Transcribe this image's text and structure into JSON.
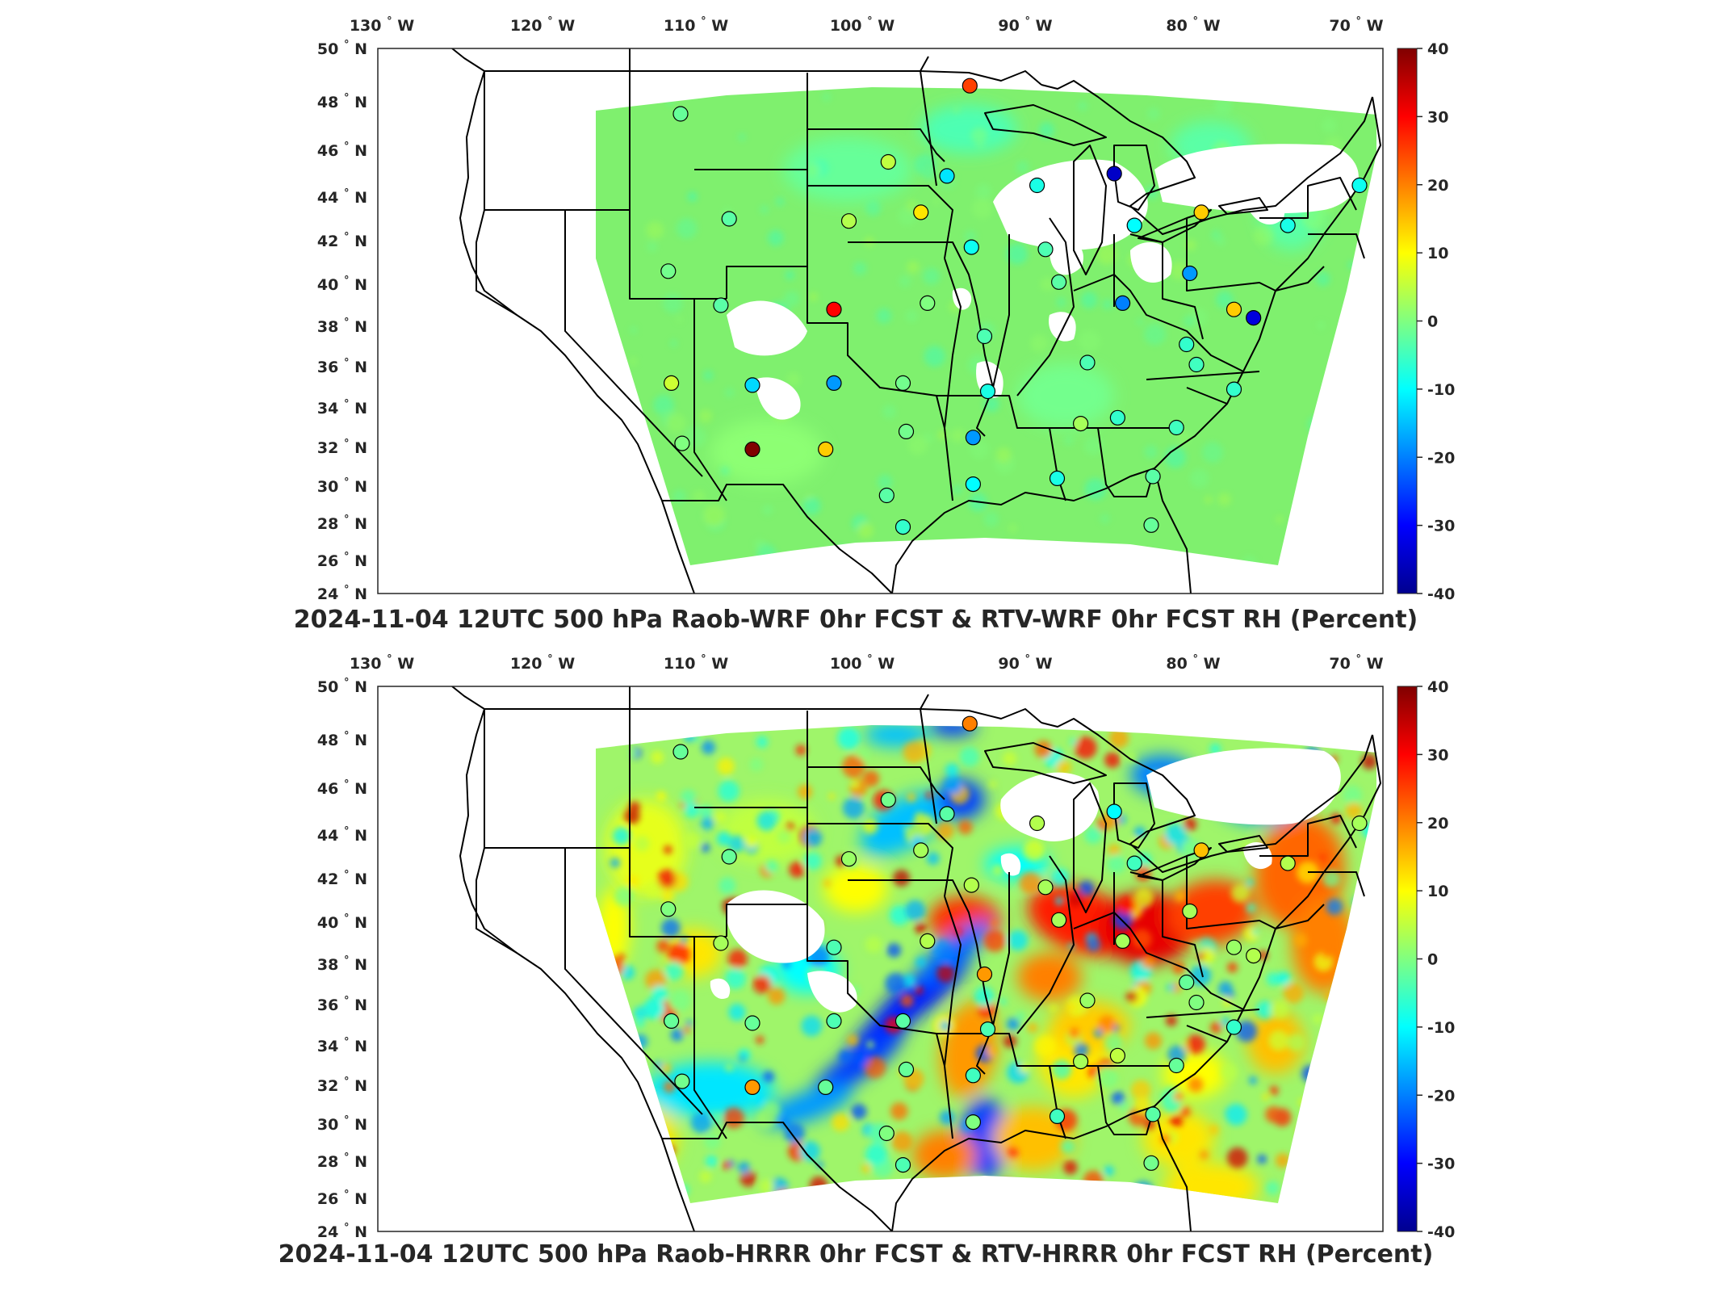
{
  "colors": {
    "jet": [
      "#00008f",
      "#0000ff",
      "#0080ff",
      "#00ffff",
      "#80ff80",
      "#ffff00",
      "#ff8000",
      "#ff0000",
      "#800000"
    ],
    "field_base": "#7ff06e",
    "outline": "#000000"
  },
  "icons": {
    "station_marker": "circle-marker-icon",
    "colorbar": "colorbar-gradient-icon"
  },
  "panels": [
    {
      "title": "2024-11-04 12UTC 500 hPa Raob-WRF 0hr FCST & RTV-WRF 0hr FCST RH (Percent)",
      "lon_ticks": [
        {
          "v": "130",
          "u": "W"
        },
        {
          "v": "120",
          "u": "W"
        },
        {
          "v": "110",
          "u": "W"
        },
        {
          "v": "100",
          "u": "W"
        },
        {
          "v": "90",
          "u": "W"
        },
        {
          "v": "80",
          "u": "W"
        },
        {
          "v": "70",
          "u": "W"
        }
      ],
      "lat_ticks": [
        {
          "v": "50",
          "u": "N"
        },
        {
          "v": "48",
          "u": "N"
        },
        {
          "v": "46",
          "u": "N"
        },
        {
          "v": "44",
          "u": "N"
        },
        {
          "v": "42",
          "u": "N"
        },
        {
          "v": "40",
          "u": "N"
        },
        {
          "v": "38",
          "u": "N"
        },
        {
          "v": "36",
          "u": "N"
        },
        {
          "v": "34",
          "u": "N"
        },
        {
          "v": "32",
          "u": "N"
        },
        {
          "v": "30",
          "u": "N"
        },
        {
          "v": "28",
          "u": "N"
        },
        {
          "v": "26",
          "u": "N"
        },
        {
          "v": "24",
          "u": "N"
        }
      ],
      "colorbar_ticks": [
        "40",
        "30",
        "20",
        "10",
        "0",
        "-10",
        "-20",
        "-30",
        "-40"
      ],
      "field_style": "muted"
    },
    {
      "title": "2024-11-04 12UTC 500 hPa Raob-HRRR 0hr FCST & RTV-HRRR 0hr FCST RH (Percent)",
      "lon_ticks": [
        {
          "v": "130",
          "u": "W"
        },
        {
          "v": "120",
          "u": "W"
        },
        {
          "v": "110",
          "u": "W"
        },
        {
          "v": "100",
          "u": "W"
        },
        {
          "v": "90",
          "u": "W"
        },
        {
          "v": "80",
          "u": "W"
        },
        {
          "v": "70",
          "u": "W"
        }
      ],
      "lat_ticks": [
        {
          "v": "50",
          "u": "N"
        },
        {
          "v": "48",
          "u": "N"
        },
        {
          "v": "46",
          "u": "N"
        },
        {
          "v": "44",
          "u": "N"
        },
        {
          "v": "42",
          "u": "N"
        },
        {
          "v": "40",
          "u": "N"
        },
        {
          "v": "38",
          "u": "N"
        },
        {
          "v": "36",
          "u": "N"
        },
        {
          "v": "34",
          "u": "N"
        },
        {
          "v": "32",
          "u": "N"
        },
        {
          "v": "30",
          "u": "N"
        },
        {
          "v": "28",
          "u": "N"
        },
        {
          "v": "26",
          "u": "N"
        },
        {
          "v": "24",
          "u": "N"
        }
      ],
      "colorbar_ticks": [
        "40",
        "30",
        "20",
        "10",
        "0",
        "-10",
        "-20",
        "-30",
        "-40"
      ],
      "field_style": "vivid"
    }
  ],
  "stations": [
    {
      "lon": -111.0,
      "lat": 47.5,
      "v1": -2,
      "v2": -2
    },
    {
      "lon": -98.4,
      "lat": 45.5,
      "v1": 5,
      "v2": -1
    },
    {
      "lon": -93.4,
      "lat": 48.6,
      "v1": 25,
      "v2": 20
    },
    {
      "lon": -94.8,
      "lat": 44.9,
      "v1": -12,
      "v2": -3
    },
    {
      "lon": -89.3,
      "lat": 44.5,
      "v1": -8,
      "v2": 4
    },
    {
      "lon": -84.7,
      "lat": 45.0,
      "v1": -35,
      "v2": -10
    },
    {
      "lon": -108.0,
      "lat": 43.0,
      "v1": -3,
      "v2": -2
    },
    {
      "lon": -100.8,
      "lat": 42.9,
      "v1": 4,
      "v2": 2
    },
    {
      "lon": -96.4,
      "lat": 43.3,
      "v1": 12,
      "v2": 3
    },
    {
      "lon": -93.3,
      "lat": 41.7,
      "v1": -9,
      "v2": 4
    },
    {
      "lon": -88.8,
      "lat": 41.6,
      "v1": -4,
      "v2": 3
    },
    {
      "lon": -83.5,
      "lat": 42.7,
      "v1": -10,
      "v2": -5
    },
    {
      "lon": -79.5,
      "lat": 43.3,
      "v1": 14,
      "v2": 15
    },
    {
      "lon": -74.2,
      "lat": 42.7,
      "v1": -8,
      "v2": 4
    },
    {
      "lon": -69.8,
      "lat": 44.5,
      "v1": -9,
      "v2": 3
    },
    {
      "lon": -111.8,
      "lat": 40.6,
      "v1": -1,
      "v2": 0
    },
    {
      "lon": -108.5,
      "lat": 39.0,
      "v1": -3,
      "v2": 3
    },
    {
      "lon": -101.7,
      "lat": 38.8,
      "v1": 30,
      "v2": -4
    },
    {
      "lon": -96.0,
      "lat": 39.1,
      "v1": 0,
      "v2": 4
    },
    {
      "lon": -92.5,
      "lat": 37.5,
      "v1": -4,
      "v2": 18
    },
    {
      "lon": -88.0,
      "lat": 40.1,
      "v1": -3,
      "v2": 3
    },
    {
      "lon": -84.2,
      "lat": 39.1,
      "v1": -20,
      "v2": 3
    },
    {
      "lon": -80.2,
      "lat": 40.5,
      "v1": -18,
      "v2": 3
    },
    {
      "lon": -77.5,
      "lat": 38.8,
      "v1": 14,
      "v2": 2
    },
    {
      "lon": -76.3,
      "lat": 38.4,
      "v1": -33,
      "v2": 4
    },
    {
      "lon": -80.4,
      "lat": 37.1,
      "v1": -6,
      "v2": -2
    },
    {
      "lon": -86.3,
      "lat": 36.2,
      "v1": -4,
      "v2": 2
    },
    {
      "lon": -79.8,
      "lat": 36.1,
      "v1": -5,
      "v2": 0
    },
    {
      "lon": -77.5,
      "lat": 34.9,
      "v1": -6,
      "v2": -6
    },
    {
      "lon": -111.6,
      "lat": 35.2,
      "v1": 6,
      "v2": -2
    },
    {
      "lon": -106.6,
      "lat": 35.1,
      "v1": -13,
      "v2": -2
    },
    {
      "lon": -101.7,
      "lat": 35.2,
      "v1": -18,
      "v2": -4
    },
    {
      "lon": -97.5,
      "lat": 35.2,
      "v1": -1,
      "v2": -3
    },
    {
      "lon": -92.3,
      "lat": 34.8,
      "v1": -8,
      "v2": -4
    },
    {
      "lon": -86.7,
      "lat": 33.2,
      "v1": 3,
      "v2": 3
    },
    {
      "lon": -84.5,
      "lat": 33.5,
      "v1": -6,
      "v2": 5
    },
    {
      "lon": -81.0,
      "lat": 33.0,
      "v1": -5,
      "v2": -2
    },
    {
      "lon": -110.9,
      "lat": 32.2,
      "v1": 0,
      "v2": -1
    },
    {
      "lon": -106.6,
      "lat": 31.9,
      "v1": 40,
      "v2": 18
    },
    {
      "lon": -102.2,
      "lat": 31.9,
      "v1": 14,
      "v2": -2
    },
    {
      "lon": -97.3,
      "lat": 32.8,
      "v1": -1,
      "v2": -2
    },
    {
      "lon": -93.2,
      "lat": 32.5,
      "v1": -18,
      "v2": -5
    },
    {
      "lon": -98.5,
      "lat": 29.5,
      "v1": -3,
      "v2": 0
    },
    {
      "lon": -97.5,
      "lat": 27.8,
      "v1": -6,
      "v2": -4
    },
    {
      "lon": -93.2,
      "lat": 30.1,
      "v1": -10,
      "v2": 0
    },
    {
      "lon": -88.1,
      "lat": 30.4,
      "v1": -8,
      "v2": -5
    },
    {
      "lon": -82.4,
      "lat": 30.5,
      "v1": -3,
      "v2": -3
    },
    {
      "lon": -82.5,
      "lat": 27.9,
      "v1": -2,
      "v2": -1
    }
  ]
}
